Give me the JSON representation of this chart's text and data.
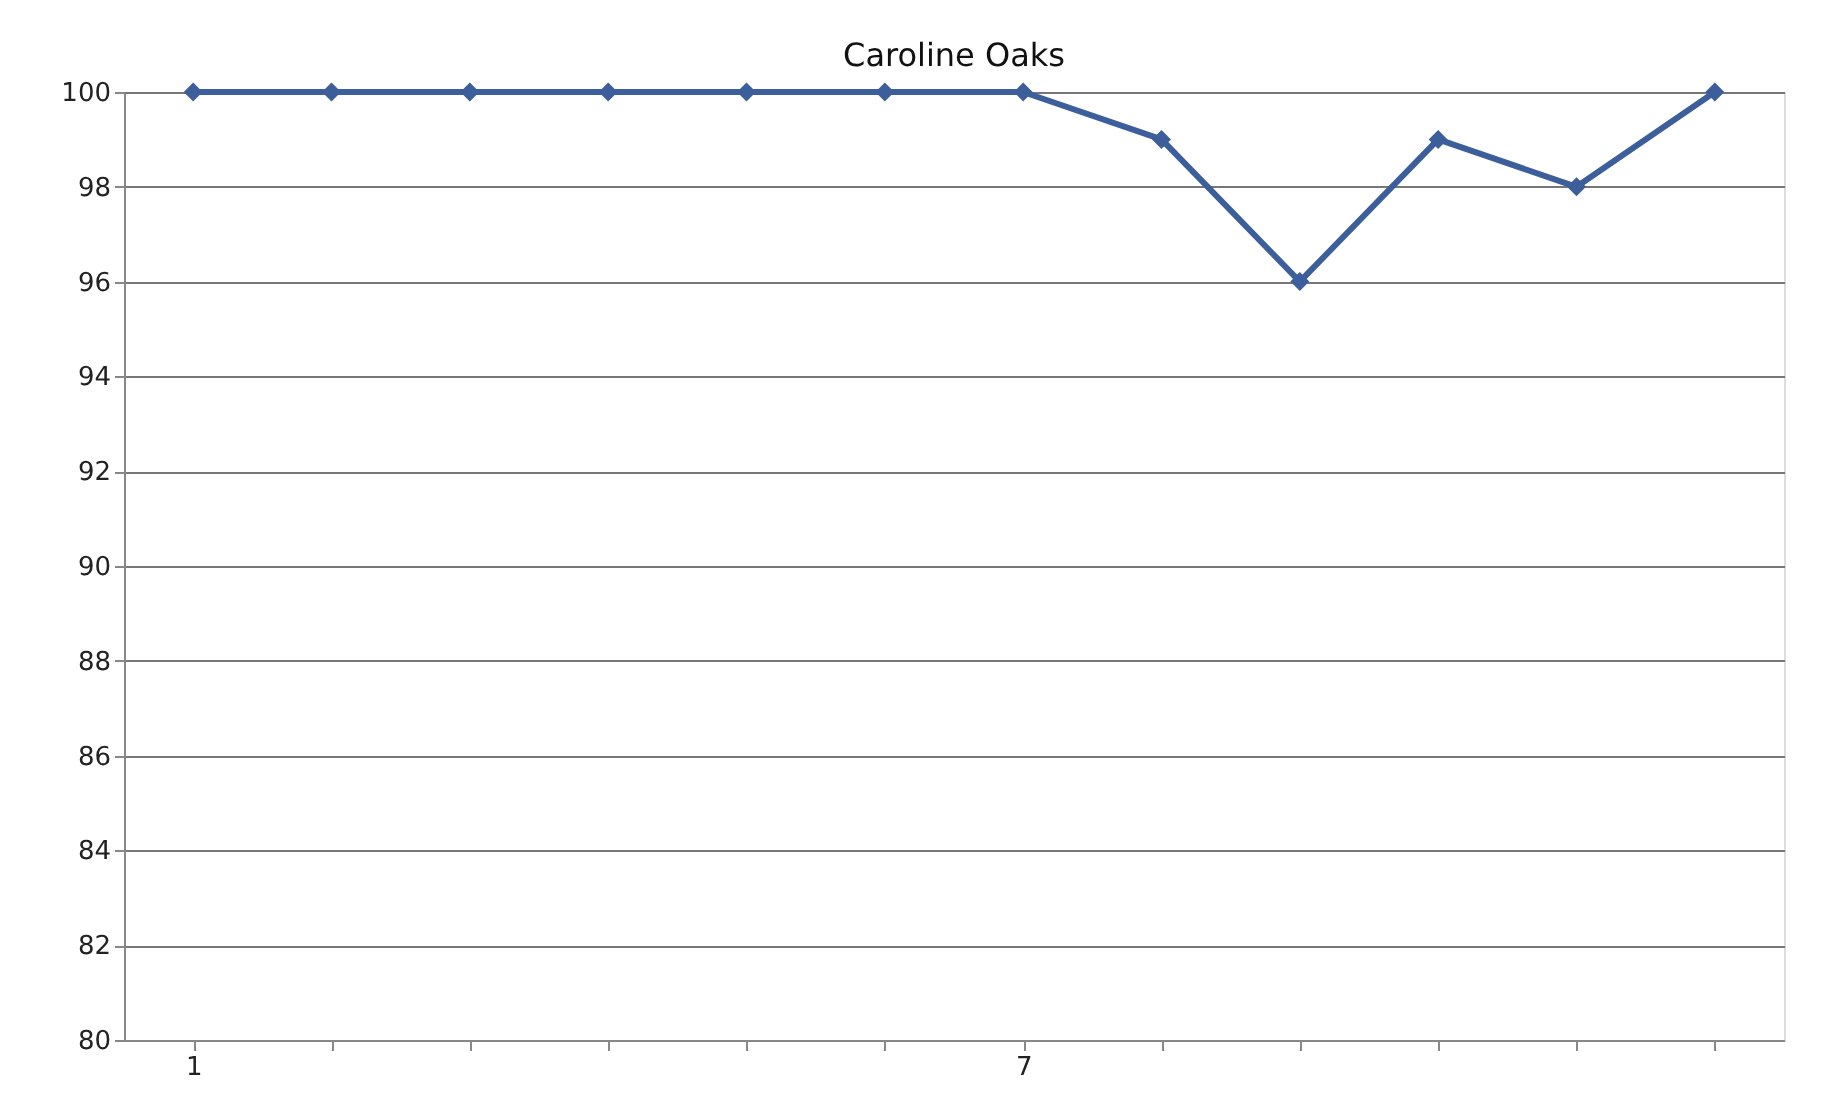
{
  "chart_data": {
    "type": "line",
    "title": "Caroline Oaks",
    "categories": [
      "1",
      null,
      null,
      null,
      null,
      null,
      "7",
      null,
      null,
      null,
      null,
      null
    ],
    "series": [
      {
        "color": "#3c5f9c",
        "values": [
          100,
          100,
          100,
          100,
          100,
          100,
          100,
          99,
          96,
          99,
          98,
          100
        ]
      }
    ],
    "ylim": [
      80,
      100
    ],
    "yticks": [
      80,
      82,
      84,
      86,
      88,
      90,
      92,
      94,
      96,
      98,
      100
    ],
    "grid": "y",
    "marker": "diamond",
    "line_style": "solid"
  }
}
